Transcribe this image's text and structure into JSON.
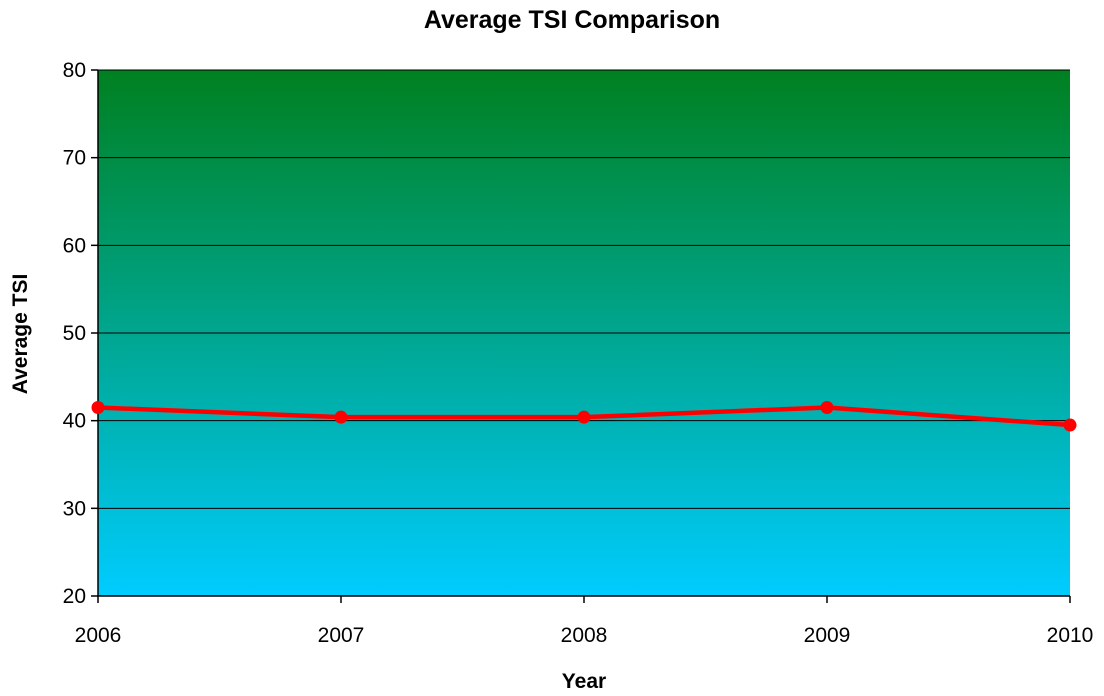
{
  "chart_data": {
    "type": "line",
    "title": "Average TSI Comparison",
    "xlabel": "Year",
    "ylabel": "Average TSI",
    "categories": [
      "2006",
      "2007",
      "2008",
      "2009",
      "2010"
    ],
    "series": [
      {
        "values": [
          41.5,
          40.4,
          40.4,
          41.5,
          39.5
        ],
        "color": "#ff0000"
      }
    ],
    "ylim": [
      20,
      80
    ],
    "yticks": [
      "20",
      "30",
      "40",
      "50",
      "60",
      "70",
      "80"
    ],
    "grid": true,
    "legend": "none",
    "plot_background": {
      "top_color": "#008020",
      "bottom_color": "#00ccff"
    }
  }
}
